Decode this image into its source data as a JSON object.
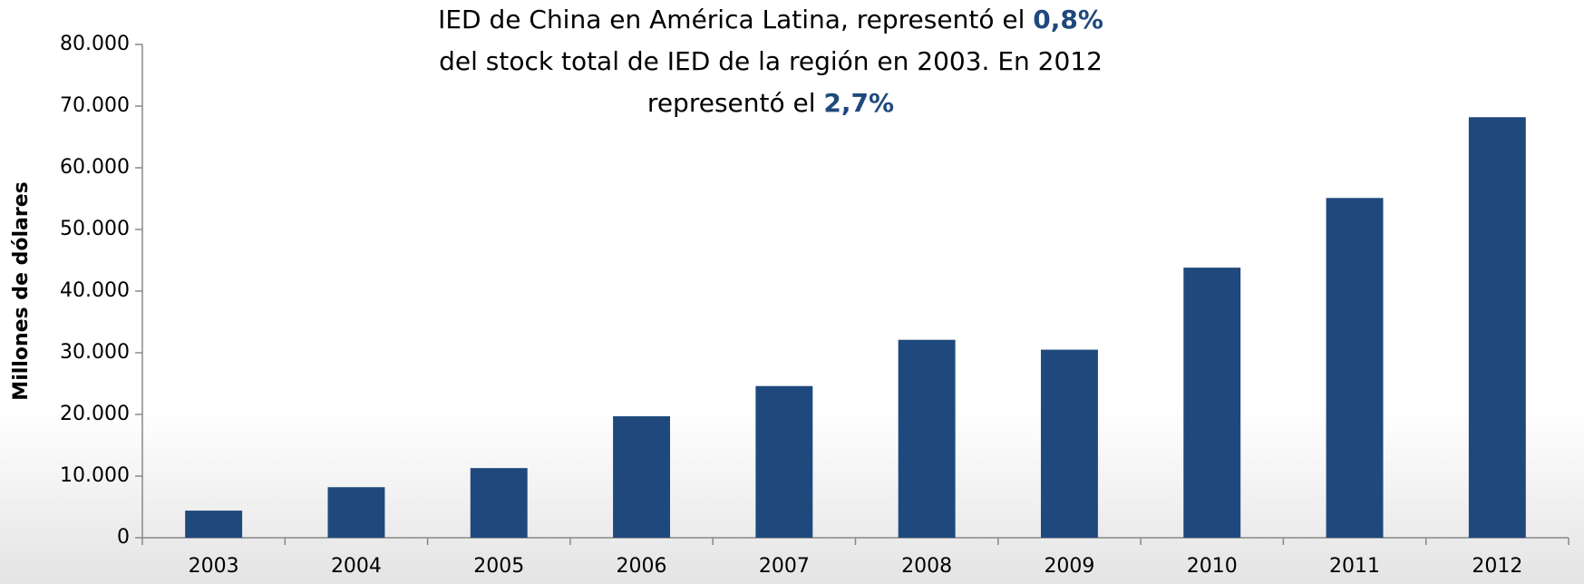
{
  "chart_data": {
    "type": "bar",
    "title_lines": [
      [
        {
          "text": "IED de China en América Latina, representó el "
        },
        {
          "text": "0,8%",
          "bold": true
        }
      ],
      [
        {
          "text": "del stock total de IED de la región en 2003. En 2012"
        }
      ],
      [
        {
          "text": "representó el "
        },
        {
          "text": "2,7%",
          "bold": true
        }
      ]
    ],
    "highlight_color": "#1f497d",
    "ylabel": "Millones de dólares",
    "categories": [
      "2003",
      "2004",
      "2005",
      "2006",
      "2007",
      "2008",
      "2009",
      "2010",
      "2011",
      "2012"
    ],
    "values": [
      4400,
      8200,
      11300,
      19700,
      24600,
      32100,
      30500,
      43800,
      55100,
      68200
    ],
    "color": "#1f497d",
    "ylim": [
      0,
      80000
    ],
    "yticks": [
      0,
      {
        "value": 10000,
        "label": "10.000"
      },
      {
        "value": 20000,
        "label": "20.000"
      },
      {
        "value": 30000,
        "label": "30.000"
      },
      {
        "value": 40000,
        "label": "40.000"
      },
      {
        "value": 50000,
        "label": "50.000"
      },
      {
        "value": 60000,
        "label": "60.000"
      },
      {
        "value": 70000,
        "label": "70.000"
      },
      {
        "value": 80000,
        "label": "80.000"
      }
    ],
    "grid": false
  }
}
